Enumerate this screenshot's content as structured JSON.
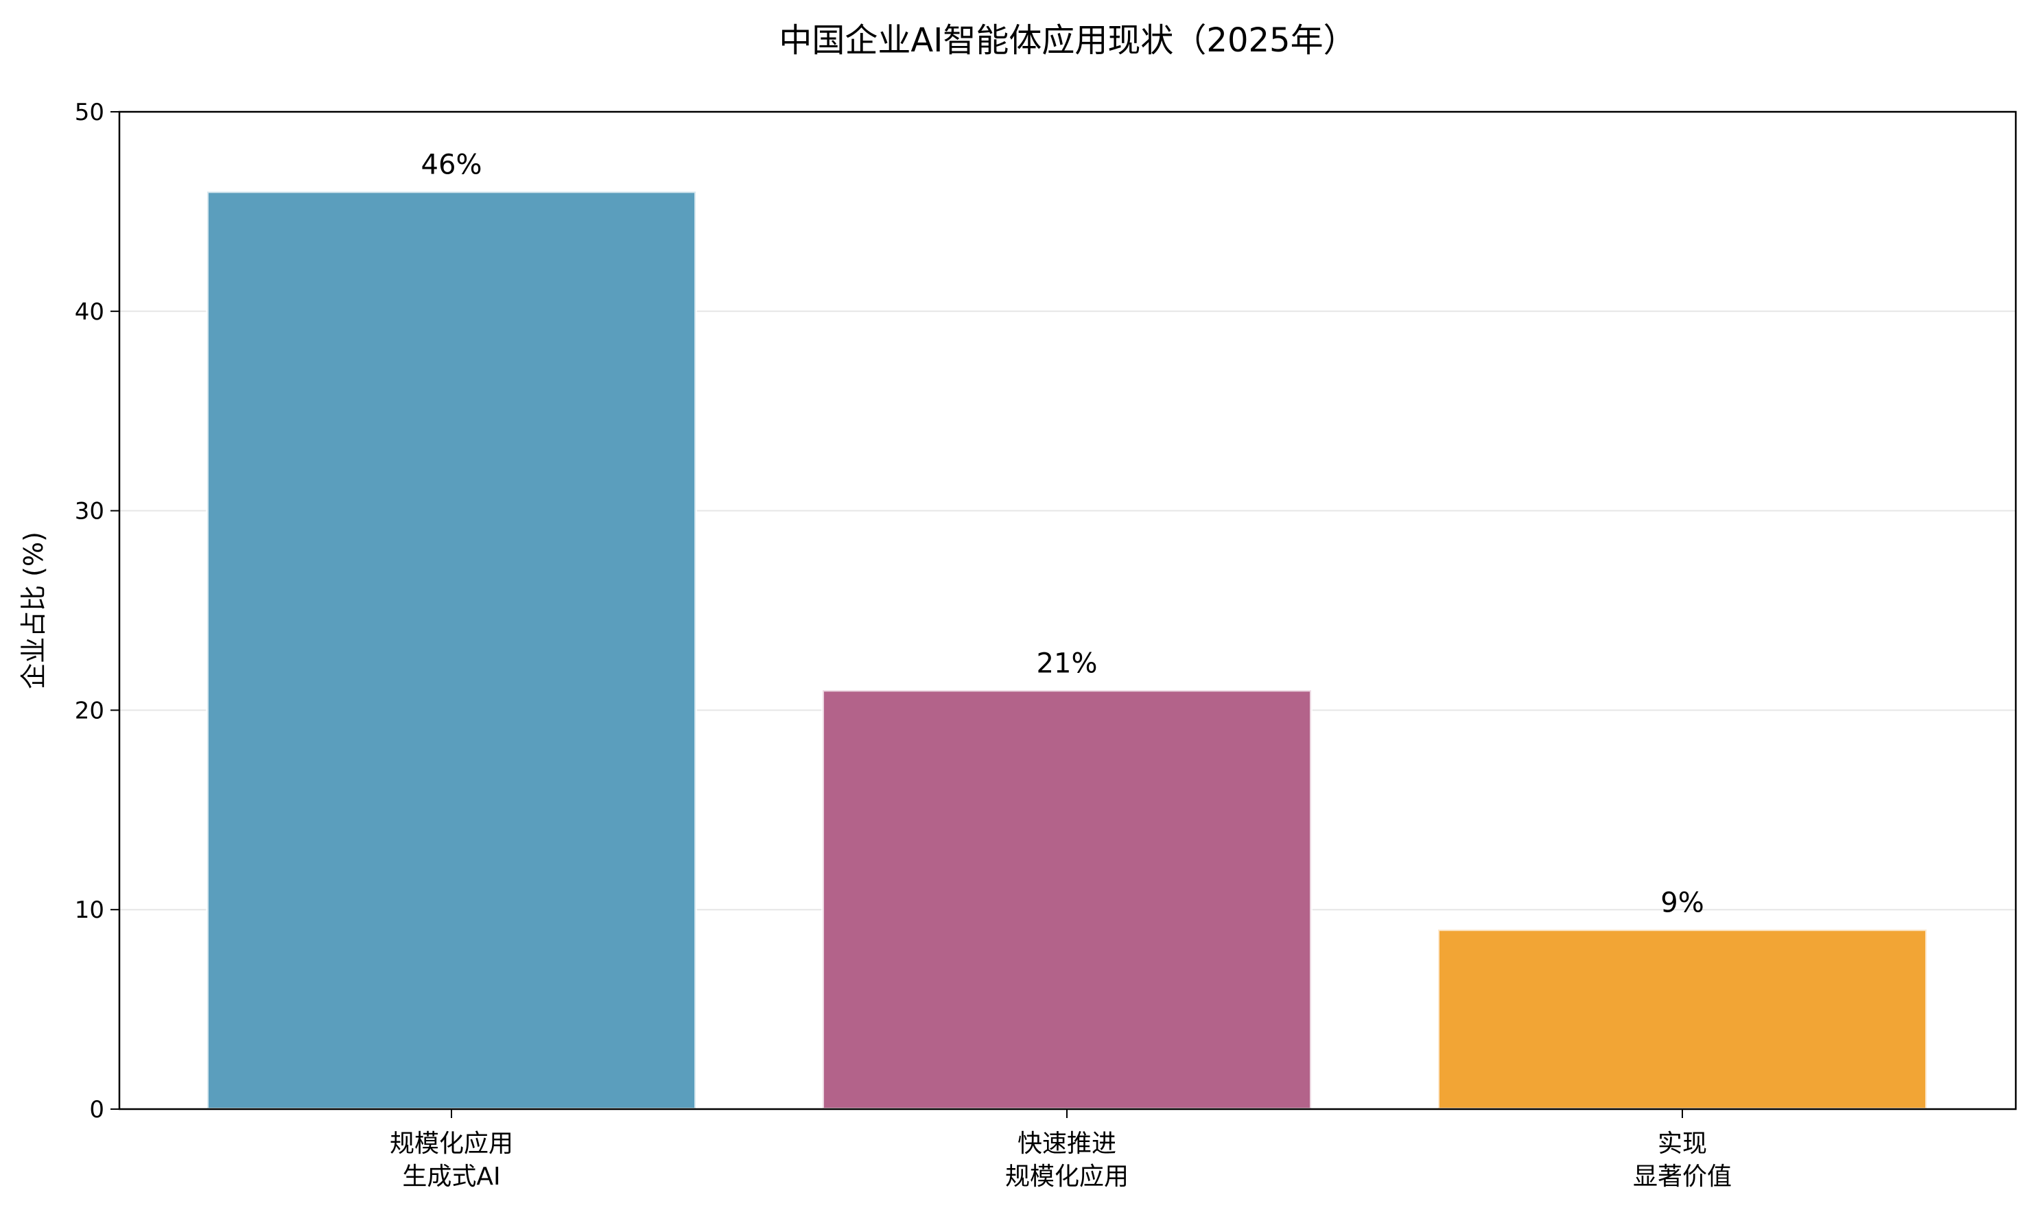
{
  "chart_data": {
    "type": "bar",
    "title": "中国企业AI智能体应用现状（2025年）",
    "xlabel": "",
    "ylabel": "企业占比 (%)",
    "ylim": [
      0,
      50
    ],
    "yticks": [
      0,
      10,
      20,
      30,
      40,
      50
    ],
    "grid": "y",
    "categories": [
      [
        "规模化应用",
        "生成式AI"
      ],
      [
        "快速推进",
        "规模化应用"
      ],
      [
        "实现",
        "显著价值"
      ]
    ],
    "values": [
      46,
      21,
      9
    ],
    "data_labels": [
      "46%",
      "21%",
      "9%"
    ],
    "colors": [
      "#5b9ebd",
      "#b3638a",
      "#f2a535"
    ]
  }
}
